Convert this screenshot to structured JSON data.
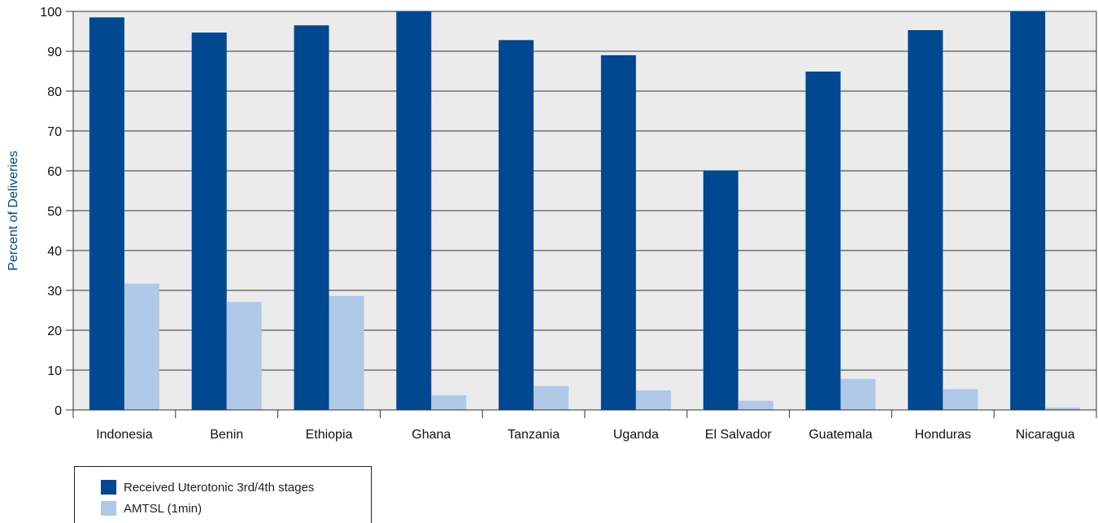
{
  "chart_data": {
    "type": "bar",
    "categories": [
      "Indonesia",
      "Benin",
      "Ethiopia",
      "Ghana",
      "Tanzania",
      "Uganda",
      "El Salvador",
      "Guatemala",
      "Honduras",
      "Nicaragua"
    ],
    "series": [
      {
        "name": "Received Uterotonic 3rd/4th stages",
        "color": "#004890",
        "values": [
          98.5,
          94.7,
          96.5,
          100,
          92.8,
          89.0,
          60.0,
          84.9,
          95.3,
          100
        ]
      },
      {
        "name": "AMTSL (1min)",
        "color": "#b0c9e8",
        "values": [
          31.7,
          27.1,
          28.6,
          3.7,
          6.0,
          4.9,
          2.3,
          7.8,
          5.2,
          0.6
        ]
      }
    ],
    "title": "",
    "xlabel": "",
    "ylabel": "Percent of Deliveries",
    "ylim": [
      0,
      100
    ],
    "yticks": [
      0,
      10,
      20,
      30,
      40,
      50,
      60,
      70,
      80,
      90,
      100
    ],
    "grid": true,
    "legend_position": "bottom-left",
    "plot_background": "#ebebeb",
    "axis_label_color": "#004890"
  }
}
